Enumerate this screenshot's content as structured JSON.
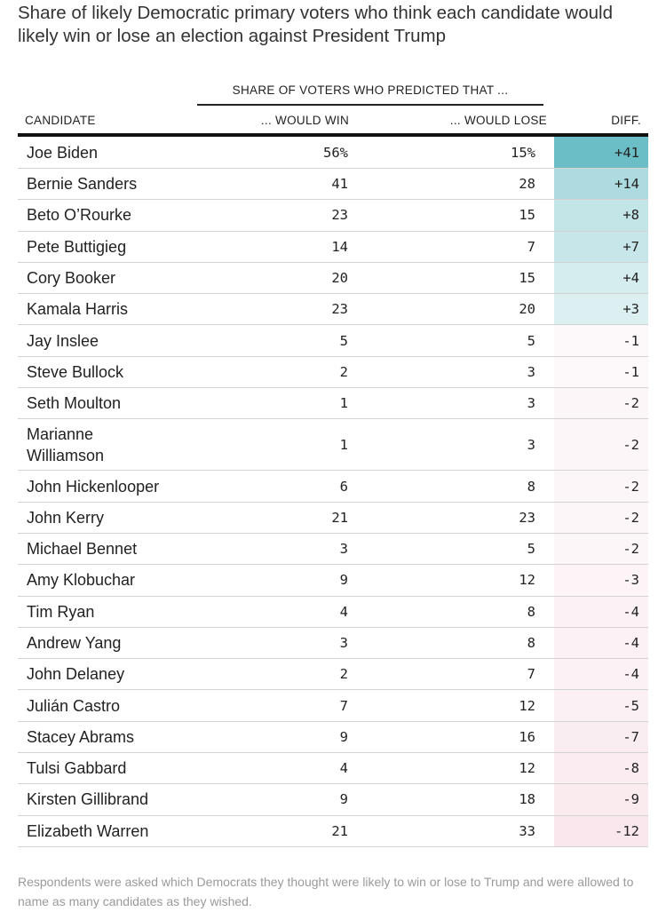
{
  "title": "Share of likely Democratic primary voters who think each candidate would likely win or lose an election against President Trump",
  "footnote": "Respondents were asked which Democrats they thought were likely to win or lose to Trump and were allowed to name as many candidates as they wished.",
  "colors": {
    "positive": "#6bbec6",
    "negative": "#f3d0db",
    "neutral": "#ffffff"
  },
  "chart_data": {
    "type": "table",
    "group_header": "SHARE OF VOTERS WHO PREDICTED THAT ...",
    "columns": [
      "CANDIDATE",
      "... WOULD WIN",
      "... WOULD LOSE",
      "DIFF."
    ],
    "rows": [
      {
        "candidate": "Joe Biden",
        "win": "56%",
        "lose": "15%",
        "diff": "+41",
        "diff_value": 41
      },
      {
        "candidate": "Bernie Sanders",
        "win": "41",
        "lose": "28",
        "diff": "+14",
        "diff_value": 14
      },
      {
        "candidate": "Beto O’Rourke",
        "win": "23",
        "lose": "15",
        "diff": "+8",
        "diff_value": 8
      },
      {
        "candidate": "Pete Buttigieg",
        "win": "14",
        "lose": "7",
        "diff": "+7",
        "diff_value": 7
      },
      {
        "candidate": "Cory Booker",
        "win": "20",
        "lose": "15",
        "diff": "+4",
        "diff_value": 4
      },
      {
        "candidate": "Kamala Harris",
        "win": "23",
        "lose": "20",
        "diff": "+3",
        "diff_value": 3
      },
      {
        "candidate": "Jay Inslee",
        "win": "5",
        "lose": "5",
        "diff": "-1",
        "diff_value": -1
      },
      {
        "candidate": "Steve Bullock",
        "win": "2",
        "lose": "3",
        "diff": "-1",
        "diff_value": -1
      },
      {
        "candidate": "Seth Moulton",
        "win": "1",
        "lose": "3",
        "diff": "-2",
        "diff_value": -2
      },
      {
        "candidate": "Marianne Williamson",
        "win": "1",
        "lose": "3",
        "diff": "-2",
        "diff_value": -2
      },
      {
        "candidate": "John Hickenlooper",
        "win": "6",
        "lose": "8",
        "diff": "-2",
        "diff_value": -2
      },
      {
        "candidate": "John Kerry",
        "win": "21",
        "lose": "23",
        "diff": "-2",
        "diff_value": -2
      },
      {
        "candidate": "Michael Bennet",
        "win": "3",
        "lose": "5",
        "diff": "-2",
        "diff_value": -2
      },
      {
        "candidate": "Amy Klobuchar",
        "win": "9",
        "lose": "12",
        "diff": "-3",
        "diff_value": -3
      },
      {
        "candidate": "Tim Ryan",
        "win": "4",
        "lose": "8",
        "diff": "-4",
        "diff_value": -4
      },
      {
        "candidate": "Andrew Yang",
        "win": "3",
        "lose": "8",
        "diff": "-4",
        "diff_value": -4
      },
      {
        "candidate": "John Delaney",
        "win": "2",
        "lose": "7",
        "diff": "-4",
        "diff_value": -4
      },
      {
        "candidate": "Julián Castro",
        "win": "7",
        "lose": "12",
        "diff": "-5",
        "diff_value": -5
      },
      {
        "candidate": "Stacey Abrams",
        "win": "9",
        "lose": "16",
        "diff": "-7",
        "diff_value": -7
      },
      {
        "candidate": "Tulsi Gabbard",
        "win": "4",
        "lose": "12",
        "diff": "-8",
        "diff_value": -8
      },
      {
        "candidate": "Kirsten Gillibrand",
        "win": "9",
        "lose": "18",
        "diff": "-9",
        "diff_value": -9
      },
      {
        "candidate": "Elizabeth Warren",
        "win": "21",
        "lose": "33",
        "diff": "-12",
        "diff_value": -12
      }
    ]
  }
}
